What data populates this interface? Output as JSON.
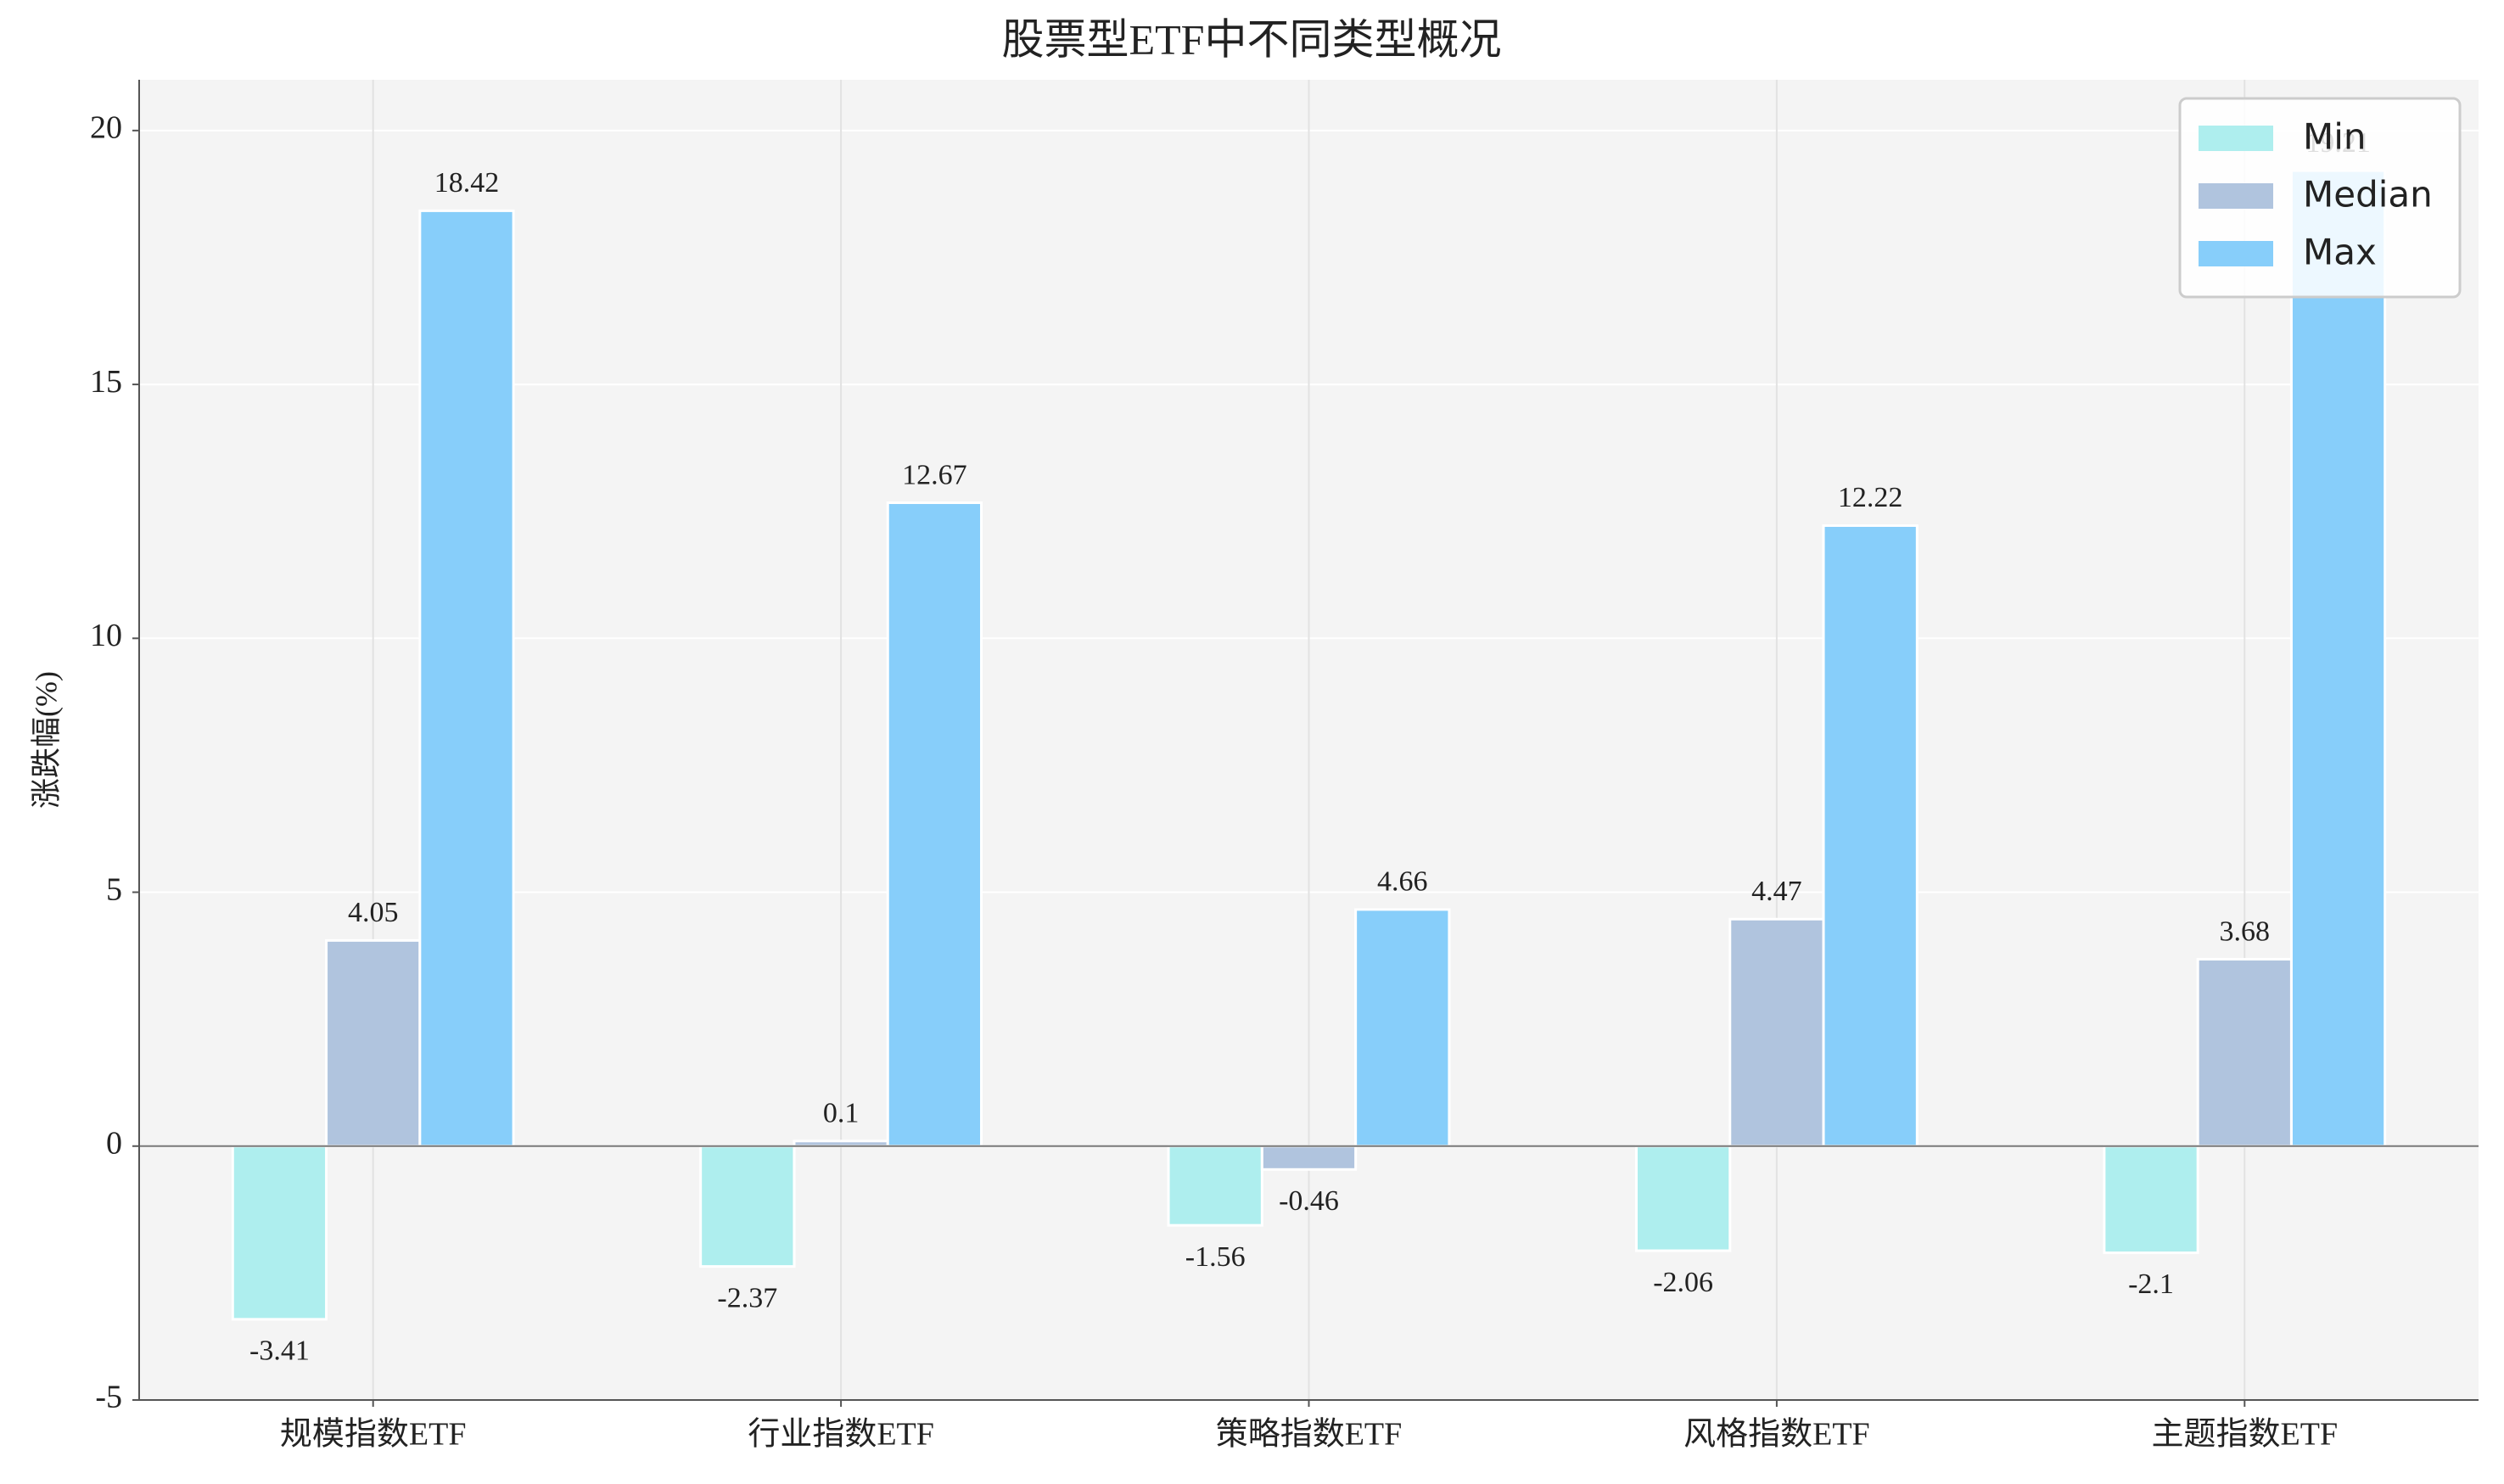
{
  "chart_data": {
    "type": "bar",
    "title": "股票型ETF中不同类型概况",
    "y_label": "涨跌幅(%)",
    "categories": [
      "规模指数ETF",
      "行业指数ETF",
      "策略指数ETF",
      "风格指数ETF",
      "主题指数ETF"
    ],
    "series": [
      {
        "name": "Min",
        "color": "#aeeeee",
        "values": [
          -3.41,
          -2.37,
          -1.56,
          -2.06,
          -2.1
        ]
      },
      {
        "name": "Median",
        "color": "#b0c4de",
        "values": [
          4.05,
          0.1,
          -0.46,
          4.47,
          3.68
        ]
      },
      {
        "name": "Max",
        "color": "#87cefa",
        "values": [
          18.42,
          12.67,
          4.66,
          12.22,
          19.21
        ]
      }
    ],
    "ylim": [
      -5,
      21
    ],
    "yticks": [
      -5,
      0,
      5,
      10,
      15,
      20
    ],
    "grid": true,
    "legend": "upper right"
  }
}
